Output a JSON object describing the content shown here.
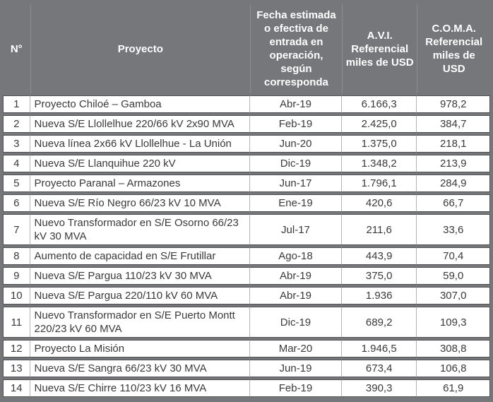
{
  "colors": {
    "header_bg": "#76777a",
    "header_text": "#ffffff",
    "cell_bg": "#ffffff",
    "cell_border_dark": "#4f4f4f",
    "cell_border_light": "#b3b3b3",
    "body_text": "#3a3a3a"
  },
  "table": {
    "columns": {
      "num": "N°",
      "proyecto": "Proyecto",
      "fecha": "Fecha estimada o efectiva de entrada en operación, según corresponda",
      "avi": "A.V.I. Referencial miles de USD",
      "coma": "C.O.M.A. Referencial miles de USD"
    },
    "rows": [
      {
        "n": "1",
        "proyecto": "Proyecto Chiloé – Gamboa",
        "fecha": "Abr-19",
        "avi": "6.166,3",
        "coma": "978,2"
      },
      {
        "n": "2",
        "proyecto": "Nueva S/E Llollelhue 220/66 kV 2x90 MVA",
        "fecha": "Feb-19",
        "avi": "2.425,0",
        "coma": "384,7"
      },
      {
        "n": "3",
        "proyecto": "Nueva línea 2x66 kV Llollelhue - La Unión",
        "fecha": "Jun-20",
        "avi": "1.375,0",
        "coma": "218,1"
      },
      {
        "n": "4",
        "proyecto": "Nueva S/E Llanquihue 220 kV",
        "fecha": "Dic-19",
        "avi": "1.348,2",
        "coma": "213,9"
      },
      {
        "n": "5",
        "proyecto": "Proyecto Paranal – Armazones",
        "fecha": "Jun-17",
        "avi": "1.796,1",
        "coma": "284,9"
      },
      {
        "n": "6",
        "proyecto": "Nueva S/E Río Negro 66/23 kV 10 MVA",
        "fecha": "Ene-19",
        "avi": "420,6",
        "coma": "66,7"
      },
      {
        "n": "7",
        "proyecto": "Nuevo Transformador en S/E Osorno 66/23 kV 30 MVA",
        "fecha": "Jul-17",
        "avi": "211,6",
        "coma": "33,6"
      },
      {
        "n": "8",
        "proyecto": "Aumento de capacidad en S/E Frutillar",
        "fecha": "Ago-18",
        "avi": "443,9",
        "coma": "70,4"
      },
      {
        "n": "9",
        "proyecto": "Nueva S/E Pargua 110/23 kV 30 MVA",
        "fecha": "Abr-19",
        "avi": "375,0",
        "coma": "59,0"
      },
      {
        "n": "10",
        "proyecto": "Nueva S/E Pargua 220/110 kV 60 MVA",
        "fecha": "Abr-19",
        "avi": "1.936",
        "coma": "307,0"
      },
      {
        "n": "11",
        "proyecto": "Nuevo Transformador en S/E Puerto Montt 220/23 kV 60 MVA",
        "fecha": "Dic-19",
        "avi": "689,2",
        "coma": "109,3"
      },
      {
        "n": "12",
        "proyecto": "Proyecto La Misión",
        "fecha": "Mar-20",
        "avi": "1.946,5",
        "coma": "308,8"
      },
      {
        "n": "13",
        "proyecto": "Nueva S/E Sangra 66/23 kV 30 MVA",
        "fecha": "Jun-19",
        "avi": "673,4",
        "coma": "106,8"
      },
      {
        "n": "14",
        "proyecto": "Nueva S/E Chirre 110/23 kV 16 MVA",
        "fecha": "Feb-19",
        "avi": "390,3",
        "coma": "61,9"
      }
    ]
  }
}
